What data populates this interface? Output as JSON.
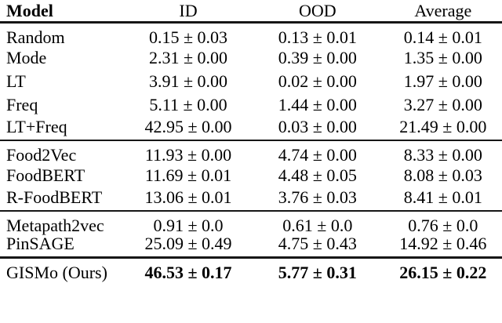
{
  "page": {
    "background": "#ffffff",
    "text_color": "#000000",
    "rule_color": "#161616"
  },
  "table": {
    "columns": {
      "model": "Model",
      "id": "ID",
      "ood": "OOD",
      "average": "Average"
    },
    "groups": [
      {
        "rows": [
          {
            "model": "Random",
            "id": "0.15 ± 0.03",
            "ood": "0.13 ± 0.01",
            "average": "0.14 ± 0.01"
          },
          {
            "model": "Mode",
            "id": "2.31 ± 0.00",
            "ood": "0.39 ± 0.00",
            "average": "1.35 ± 0.00"
          },
          {
            "model": "LT",
            "id": "3.91 ± 0.00",
            "ood": "0.02 ± 0.00",
            "average": "1.97 ± 0.00"
          },
          {
            "model": "Freq",
            "id": "5.11 ± 0.00",
            "ood": "1.44 ± 0.00",
            "average": "3.27 ± 0.00"
          },
          {
            "model": "LT+Freq",
            "id": "42.95 ± 0.00",
            "ood": "0.03 ± 0.00",
            "average": "21.49 ± 0.00"
          }
        ]
      },
      {
        "rows": [
          {
            "model": "Food2Vec",
            "id": "11.93 ± 0.00",
            "ood": "4.74 ± 0.00",
            "average": "8.33 ± 0.00"
          },
          {
            "model": "FoodBERT",
            "id": "11.69 ± 0.01",
            "ood": "4.48 ± 0.05",
            "average": "8.08 ± 0.03"
          },
          {
            "model": "R-FoodBERT",
            "id": "13.06 ± 0.01",
            "ood": "3.76 ± 0.03",
            "average": "8.41 ± 0.01"
          }
        ]
      },
      {
        "rows": [
          {
            "model": "Metapath2vec",
            "id": "0.91 ± 0.0",
            "ood": "0.61 ± 0.0",
            "average": "0.76 ± 0.0"
          },
          {
            "model": "PinSAGE",
            "id": "25.09 ± 0.49",
            "ood": "4.75 ± 0.43",
            "average": "14.92 ± 0.46"
          }
        ]
      },
      {
        "rows": [
          {
            "model": "GISMo (Ours)",
            "id": "46.53 ± 0.17",
            "ood": "5.77 ± 0.31",
            "average": "26.15 ± 0.22"
          }
        ]
      }
    ]
  }
}
